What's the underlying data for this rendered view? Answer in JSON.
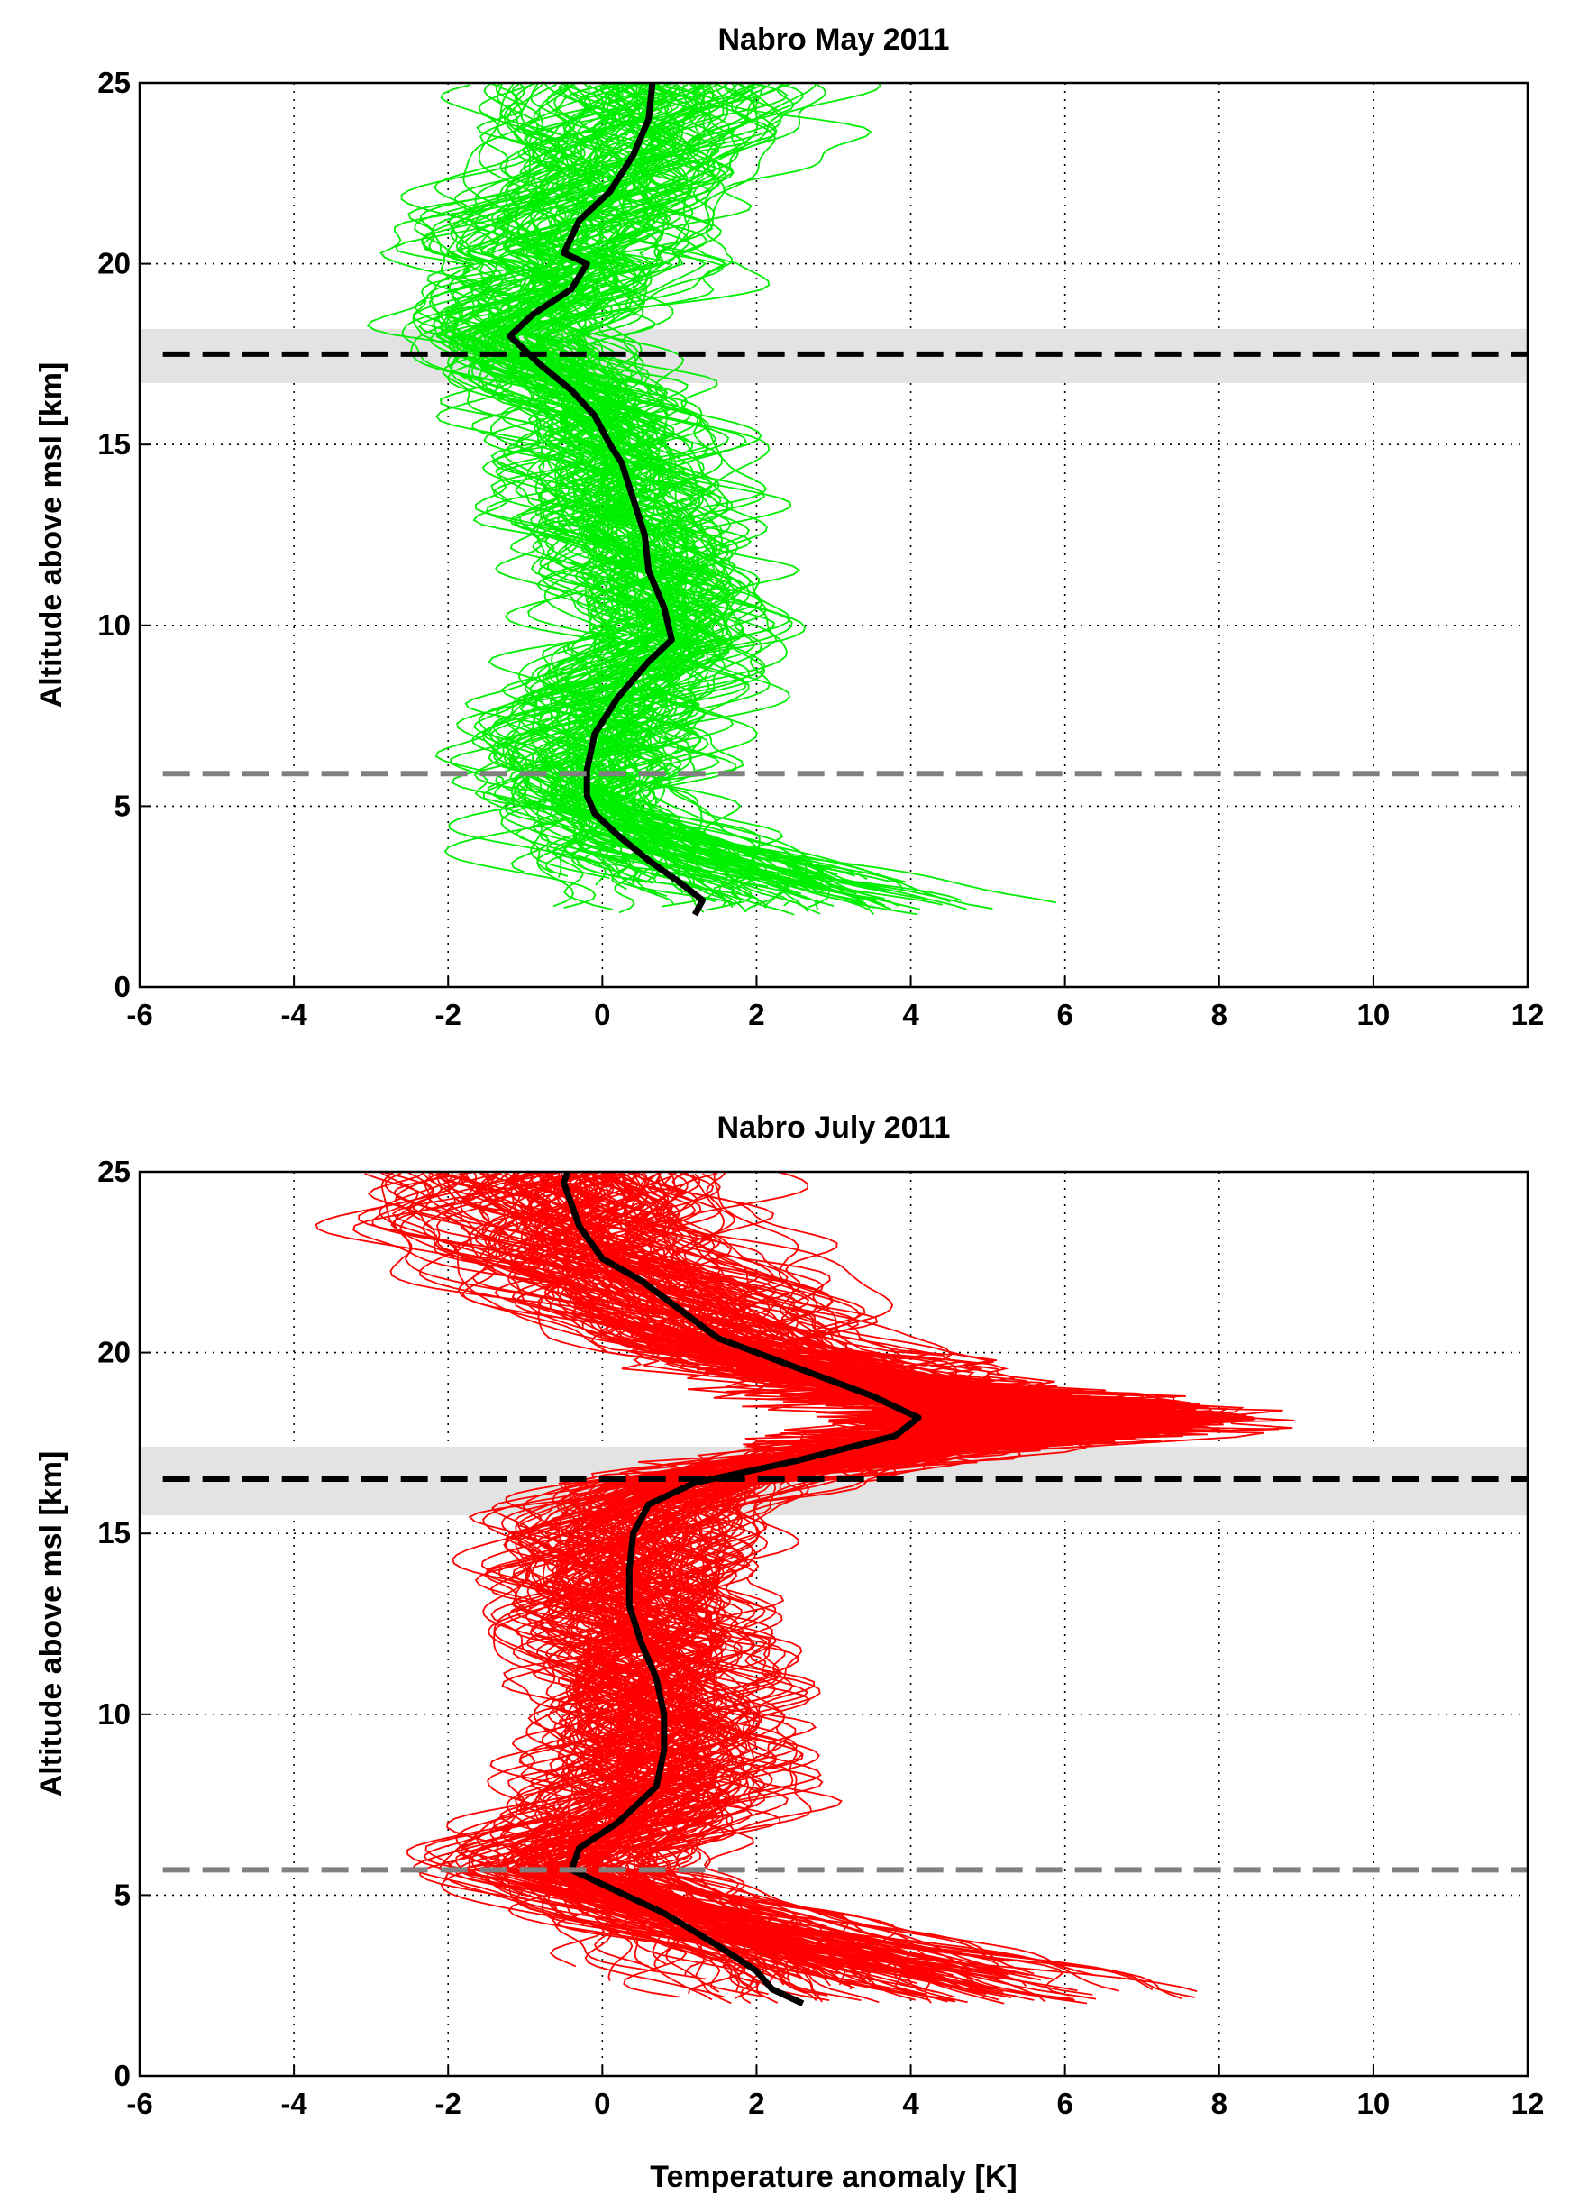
{
  "chart_data": [
    {
      "type": "line",
      "title": "Nabro May 2011",
      "xlabel": "",
      "ylabel": "Altitude above msl [km]",
      "xlim": [
        -6,
        12
      ],
      "ylim": [
        0,
        25
      ],
      "xticks": [
        "-6",
        "-4",
        "-2",
        "0",
        "2",
        "4",
        "6",
        "8",
        "10",
        "12"
      ],
      "yticks": [
        "0",
        "5",
        "10",
        "15",
        "20",
        "25"
      ],
      "grid": true,
      "profile_color": "#00ee00",
      "profile_count": 110,
      "mean_profile": {
        "color": "#000000",
        "points": [
          [
            1.2,
            2.0
          ],
          [
            1.3,
            2.4
          ],
          [
            1.0,
            2.9
          ],
          [
            0.6,
            3.5
          ],
          [
            0.2,
            4.2
          ],
          [
            -0.1,
            4.8
          ],
          [
            -0.2,
            5.3
          ],
          [
            -0.2,
            6.0
          ],
          [
            -0.1,
            7.0
          ],
          [
            0.2,
            8.0
          ],
          [
            0.6,
            9.0
          ],
          [
            0.9,
            9.6
          ],
          [
            0.8,
            10.5
          ],
          [
            0.6,
            11.5
          ],
          [
            0.55,
            12.5
          ],
          [
            0.4,
            13.5
          ],
          [
            0.25,
            14.5
          ],
          [
            0.1,
            15.0
          ],
          [
            -0.1,
            15.8
          ],
          [
            -0.4,
            16.5
          ],
          [
            -0.8,
            17.2
          ],
          [
            -1.2,
            18.0
          ],
          [
            -0.9,
            18.6
          ],
          [
            -0.4,
            19.3
          ],
          [
            -0.2,
            20.0
          ],
          [
            -0.5,
            20.3
          ],
          [
            -0.3,
            21.2
          ],
          [
            0.1,
            22.0
          ],
          [
            0.4,
            23.0
          ],
          [
            0.6,
            24.0
          ],
          [
            0.65,
            25.0
          ]
        ]
      },
      "tropopause": {
        "altitude": 17.5,
        "band": [
          16.7,
          18.2
        ],
        "color": "#000000",
        "band_color": "#e3e3e3"
      },
      "dashed_level": {
        "altitude": 5.9,
        "color": "#808080"
      }
    },
    {
      "type": "line",
      "title": "Nabro July 2011",
      "xlabel": "Temperature anomaly [K]",
      "ylabel": "Altitude above msl [km]",
      "xlim": [
        -6,
        12
      ],
      "ylim": [
        0,
        25
      ],
      "xticks": [
        "-6",
        "-4",
        "-2",
        "0",
        "2",
        "4",
        "6",
        "8",
        "10",
        "12"
      ],
      "yticks": [
        "0",
        "5",
        "10",
        "15",
        "20",
        "25"
      ],
      "grid": true,
      "profile_color": "#ff0000",
      "profile_count": 150,
      "mean_profile": {
        "color": "#000000",
        "points": [
          [
            2.6,
            2.0
          ],
          [
            2.2,
            2.4
          ],
          [
            2.0,
            2.9
          ],
          [
            1.5,
            3.6
          ],
          [
            0.8,
            4.5
          ],
          [
            0.1,
            5.2
          ],
          [
            -0.4,
            5.7
          ],
          [
            -0.3,
            6.3
          ],
          [
            0.2,
            7.0
          ],
          [
            0.7,
            8.0
          ],
          [
            0.8,
            9.0
          ],
          [
            0.8,
            10.0
          ],
          [
            0.7,
            11.0
          ],
          [
            0.5,
            12.0
          ],
          [
            0.35,
            13.0
          ],
          [
            0.35,
            14.0
          ],
          [
            0.4,
            15.0
          ],
          [
            0.6,
            15.8
          ],
          [
            1.2,
            16.4
          ],
          [
            2.5,
            17.0
          ],
          [
            3.8,
            17.7
          ],
          [
            4.1,
            18.2
          ],
          [
            3.5,
            18.8
          ],
          [
            2.5,
            19.6
          ],
          [
            1.5,
            20.4
          ],
          [
            1.0,
            21.2
          ],
          [
            0.5,
            22.0
          ],
          [
            0.0,
            22.6
          ],
          [
            -0.3,
            23.5
          ],
          [
            -0.5,
            24.7
          ],
          [
            -0.45,
            25.0
          ]
        ]
      },
      "tropopause": {
        "altitude": 16.5,
        "band": [
          15.5,
          17.4
        ],
        "color": "#000000",
        "band_color": "#e3e3e3"
      },
      "dashed_level": {
        "altitude": 5.7,
        "color": "#808080"
      }
    }
  ]
}
